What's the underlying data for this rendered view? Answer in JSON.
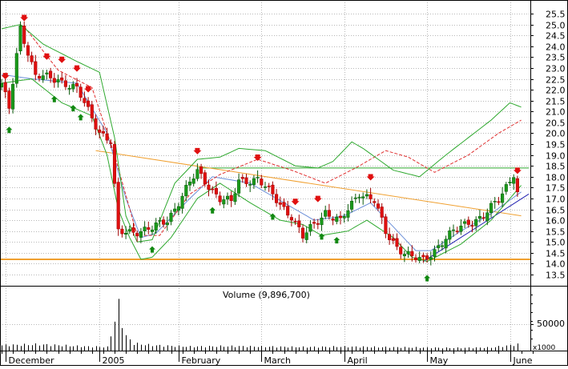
{
  "chart_data": [
    {
      "type": "candlestick",
      "panel": "price",
      "y_ticks": [
        "25.5",
        "25.0",
        "24.5",
        "24.0",
        "23.5",
        "23.0",
        "22.5",
        "22.0",
        "21.5",
        "21.0",
        "20.5",
        "20.0",
        "19.5",
        "19.0",
        "18.5",
        "18.0",
        "17.5",
        "17.0",
        "16.5",
        "16.0",
        "15.5",
        "15.0",
        "14.5",
        "14.0",
        "13.5"
      ],
      "ylim": [
        13.5,
        25.5
      ],
      "x_ticks": [
        "December",
        "2005",
        "February",
        "March",
        "April",
        "May",
        "June"
      ],
      "x_tick_index": [
        1,
        26,
        47,
        69,
        91,
        113,
        135
      ],
      "n_bars": 142,
      "series": [
        {
          "kind": "ohlc",
          "keyframes": [
            [
              0,
              22.2
            ],
            [
              2,
              21.1
            ],
            [
              5,
              24.9
            ],
            [
              9,
              22.6
            ],
            [
              15,
              22.5
            ],
            [
              20,
              22.0
            ],
            [
              26,
              20.1
            ],
            [
              29,
              19.6
            ],
            [
              31,
              15.4
            ],
            [
              35,
              15.5
            ],
            [
              40,
              15.6
            ],
            [
              44,
              16.0
            ],
            [
              50,
              17.7
            ],
            [
              52,
              18.2
            ],
            [
              58,
              17.0
            ],
            [
              61,
              16.8
            ],
            [
              63,
              17.8
            ],
            [
              68,
              17.9
            ],
            [
              71,
              17.3
            ],
            [
              77,
              16.2
            ],
            [
              80,
              15.2
            ],
            [
              86,
              16.4
            ],
            [
              90,
              15.9
            ],
            [
              95,
              17.3
            ],
            [
              99,
              16.9
            ],
            [
              102,
              15.4
            ],
            [
              105,
              14.8
            ],
            [
              109,
              14.3
            ],
            [
              112,
              14.1
            ],
            [
              118,
              15.2
            ],
            [
              124,
              15.9
            ],
            [
              128,
              16.2
            ],
            [
              132,
              16.9
            ],
            [
              136,
              18.2
            ],
            [
              137,
              17.3
            ]
          ]
        },
        {
          "kind": "sma-short",
          "color": "#6b8fd8",
          "keyframes": [
            [
              0,
              22.7
            ],
            [
              8,
              22.5
            ],
            [
              20,
              22.3
            ],
            [
              28,
              20.0
            ],
            [
              33,
              17.0
            ],
            [
              37,
              15.2
            ],
            [
              41,
              15.4
            ],
            [
              50,
              17.0
            ],
            [
              56,
              18.0
            ],
            [
              66,
              17.7
            ],
            [
              75,
              16.8
            ],
            [
              83,
              16.0
            ],
            [
              91,
              16.2
            ],
            [
              98,
              16.8
            ],
            [
              104,
              15.7
            ],
            [
              110,
              14.6
            ],
            [
              114,
              14.6
            ],
            [
              122,
              15.5
            ],
            [
              130,
              16.3
            ],
            [
              138,
              17.3
            ]
          ]
        },
        {
          "kind": "sma-long",
          "color": "#e03030",
          "keyframes": [
            [
              6,
              24.9
            ],
            [
              15,
              22.9
            ],
            [
              24,
              22.1
            ],
            [
              30,
              19.0
            ],
            [
              36,
              15.3
            ],
            [
              42,
              15.3
            ],
            [
              50,
              17.2
            ],
            [
              58,
              18.1
            ],
            [
              68,
              18.8
            ],
            [
              77,
              18.3
            ],
            [
              86,
              17.7
            ],
            [
              94,
              18.4
            ],
            [
              102,
              19.2
            ],
            [
              108,
              18.9
            ],
            [
              115,
              18.2
            ],
            [
              124,
              19.0
            ],
            [
              132,
              20.0
            ],
            [
              138,
              20.6
            ]
          ]
        },
        {
          "kind": "bollinger-upper",
          "color": "#2ea82e",
          "keyframes": [
            [
              0,
              24.8
            ],
            [
              5,
              25.0
            ],
            [
              11,
              24.1
            ],
            [
              20,
              23.3
            ],
            [
              26,
              22.8
            ],
            [
              30,
              19.8
            ],
            [
              33,
              16.2
            ],
            [
              36,
              15.0
            ],
            [
              40,
              15.1
            ],
            [
              46,
              17.7
            ],
            [
              52,
              18.8
            ],
            [
              58,
              18.9
            ],
            [
              63,
              19.3
            ],
            [
              70,
              19.2
            ],
            [
              78,
              18.5
            ],
            [
              84,
              18.4
            ],
            [
              88,
              18.7
            ],
            [
              93,
              19.6
            ],
            [
              96,
              19.3
            ],
            [
              100,
              18.8
            ],
            [
              104,
              18.3
            ],
            [
              111,
              18.0
            ],
            [
              118,
              19.0
            ],
            [
              124,
              19.8
            ],
            [
              130,
              20.6
            ],
            [
              135,
              21.4
            ],
            [
              138,
              21.2
            ]
          ]
        },
        {
          "kind": "bollinger-lower",
          "color": "#2ea82e",
          "keyframes": [
            [
              0,
              22.3
            ],
            [
              8,
              22.5
            ],
            [
              16,
              21.4
            ],
            [
              24,
              20.8
            ],
            [
              28,
              19.0
            ],
            [
              31,
              16.5
            ],
            [
              34,
              15.2
            ],
            [
              37,
              14.2
            ],
            [
              40,
              14.3
            ],
            [
              45,
              15.2
            ],
            [
              52,
              17.0
            ],
            [
              58,
              17.7
            ],
            [
              66,
              16.8
            ],
            [
              74,
              16.0
            ],
            [
              80,
              15.8
            ],
            [
              85,
              15.3
            ],
            [
              92,
              15.5
            ],
            [
              97,
              16.0
            ],
            [
              104,
              15.2
            ],
            [
              109,
              14.3
            ],
            [
              113,
              14.1
            ],
            [
              122,
              14.9
            ],
            [
              130,
              16.0
            ],
            [
              138,
              17.6
            ]
          ]
        }
      ]
    },
    {
      "type": "bar",
      "panel": "volume",
      "title": "Volume (9,896,700)",
      "y_tick_label": "50000",
      "y_unit": "x1000",
      "ylim": [
        0,
        100000
      ],
      "values_keyframes": [
        [
          0,
          12000
        ],
        [
          10,
          14000
        ],
        [
          20,
          10000
        ],
        [
          28,
          8000
        ],
        [
          31,
          98000
        ],
        [
          33,
          32000
        ],
        [
          35,
          16000
        ],
        [
          40,
          12000
        ],
        [
          50,
          9000
        ],
        [
          60,
          10000
        ],
        [
          70,
          9000
        ],
        [
          80,
          8000
        ],
        [
          90,
          9000
        ],
        [
          100,
          8000
        ],
        [
          110,
          7000
        ],
        [
          120,
          6000
        ],
        [
          130,
          7000
        ],
        [
          137,
          14000
        ]
      ]
    }
  ],
  "annotations": {
    "horizontal_lines": [
      {
        "price": 18.4,
        "color": "#2ea82e"
      },
      {
        "price": 14.2,
        "color": "#f0a030"
      }
    ],
    "trendlines": [
      {
        "from": [
          25,
          19.2
        ],
        "to": [
          138,
          16.2
        ],
        "color": "#f0a030"
      },
      {
        "from": [
          112,
          14.1
        ],
        "to": [
          140,
          17.2
        ],
        "color": "#2020b0"
      }
    ],
    "sell_arrow_bars": [
      1,
      6,
      12,
      16,
      20,
      23,
      52,
      68,
      78,
      84,
      98,
      137
    ],
    "buy_arrow_bars": [
      2,
      14,
      19,
      21,
      40,
      56,
      72,
      85,
      89,
      113
    ]
  }
}
